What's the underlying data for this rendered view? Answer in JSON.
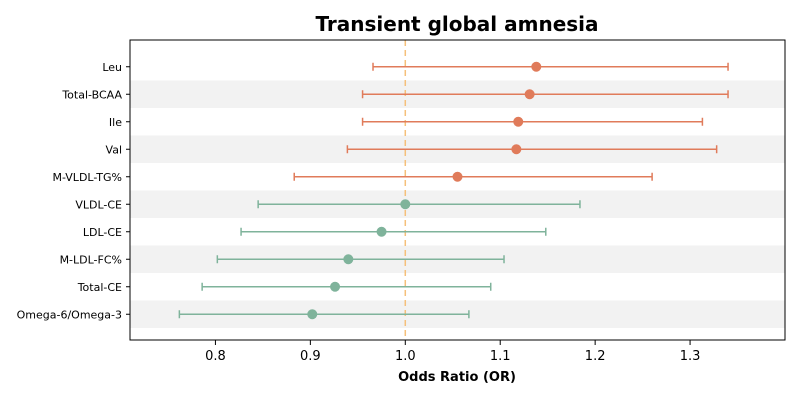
{
  "chart_data": {
    "type": "forest",
    "title": "Transient global amnesia",
    "xlabel": "Odds Ratio (OR)",
    "ylabel": "",
    "xlim": [
      0.71,
      1.4
    ],
    "xticks": [
      "0.8",
      "0.9",
      "1.0",
      "1.1",
      "1.2",
      "1.3"
    ],
    "reference_line": 1.0,
    "colors": {
      "above_one": "#e07b5a",
      "below_one": "#7fb39b",
      "reference": "#f5c07a",
      "stripe": "#f2f2f2"
    },
    "rows": [
      {
        "label": "Leu",
        "or": 1.138,
        "lower": 0.966,
        "upper": 1.34
      },
      {
        "label": "Total-BCAA",
        "or": 1.131,
        "lower": 0.955,
        "upper": 1.34
      },
      {
        "label": "Ile",
        "or": 1.119,
        "lower": 0.955,
        "upper": 1.313
      },
      {
        "label": "Val",
        "or": 1.117,
        "lower": 0.939,
        "upper": 1.328
      },
      {
        "label": "M-VLDL-TG%",
        "or": 1.055,
        "lower": 0.883,
        "upper": 1.26
      },
      {
        "label": "VLDL-CE",
        "or": 1.0,
        "lower": 0.845,
        "upper": 1.184
      },
      {
        "label": "LDL-CE",
        "or": 0.975,
        "lower": 0.827,
        "upper": 1.148
      },
      {
        "label": "M-LDL-FC%",
        "or": 0.94,
        "lower": 0.802,
        "upper": 1.104
      },
      {
        "label": "Total-CE",
        "or": 0.926,
        "lower": 0.786,
        "upper": 1.09
      },
      {
        "label": "Omega-6/Omega-3",
        "or": 0.902,
        "lower": 0.762,
        "upper": 1.067
      }
    ]
  }
}
